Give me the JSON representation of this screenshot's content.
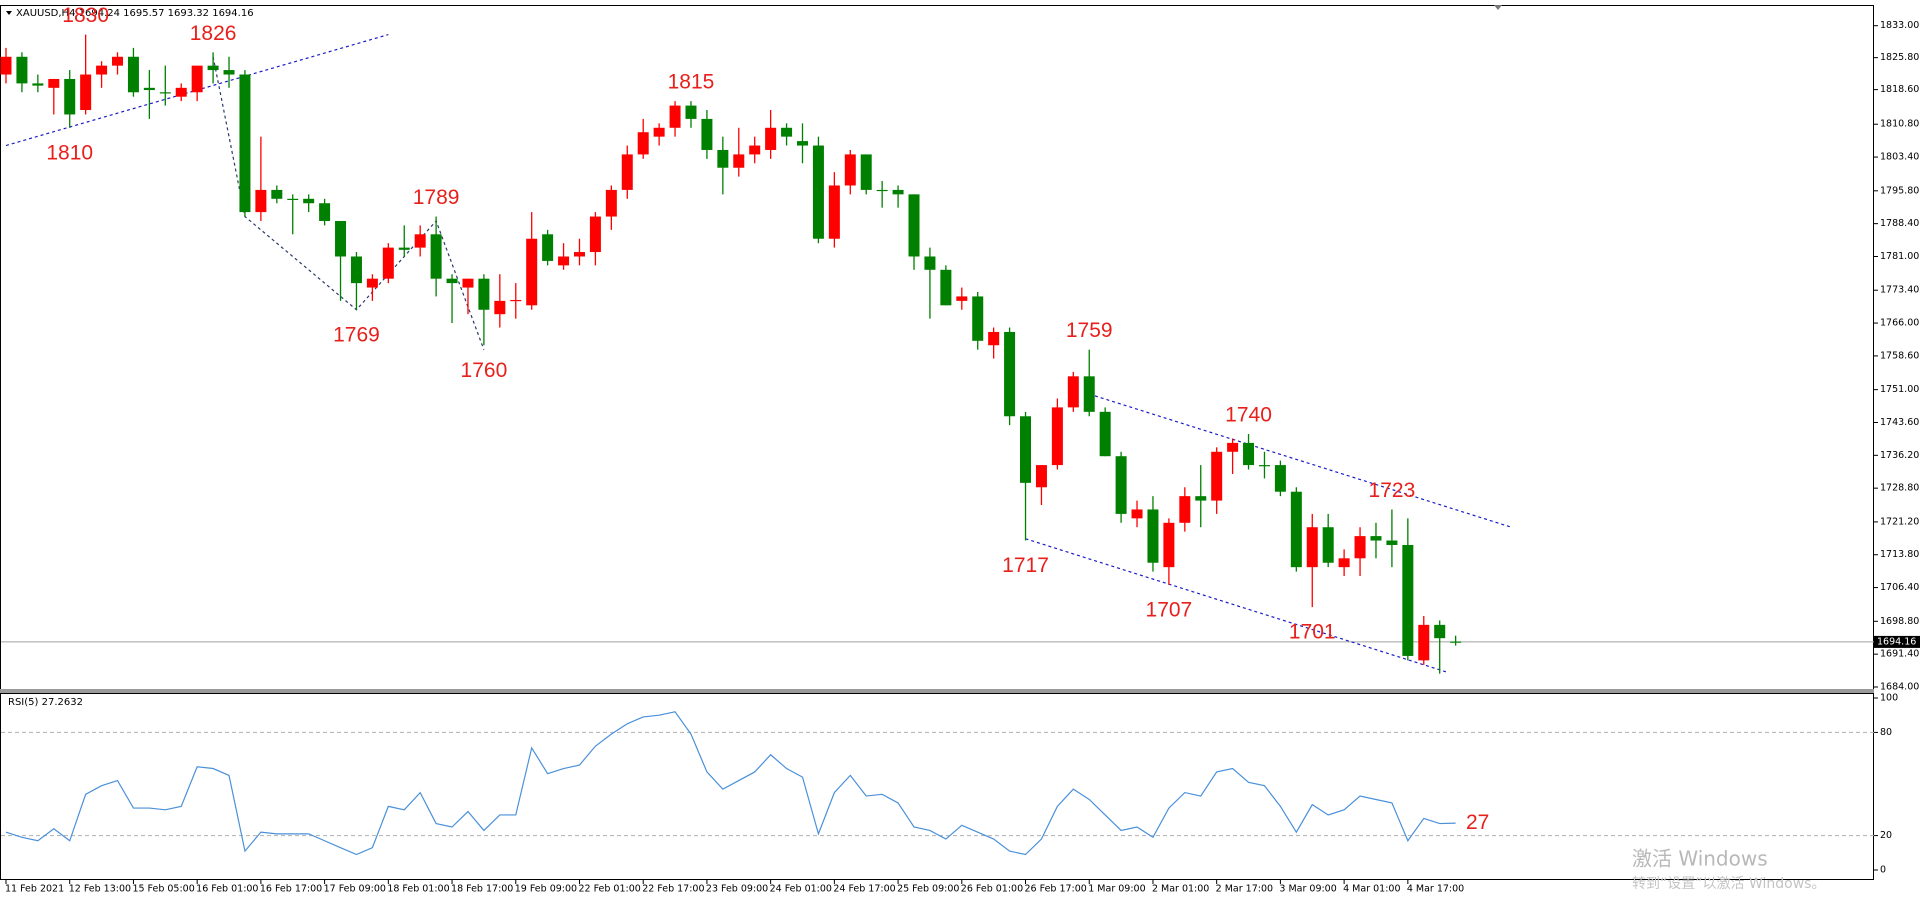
{
  "chart_data": [
    {
      "type": "candlestick",
      "title": "XAUUSD,H4 1694.24 1695.57 1693.32 1694.16",
      "categories": [
        "11 Feb 2021",
        null,
        null,
        null,
        "12 Feb 13:00",
        null,
        null,
        null,
        "15 Feb 05:00",
        null,
        null,
        null,
        "16 Feb 01:00",
        null,
        null,
        null,
        "16 Feb 17:00",
        null,
        null,
        null,
        "17 Feb 09:00",
        null,
        null,
        null,
        "18 Feb 01:00",
        null,
        null,
        null,
        "18 Feb 17:00",
        null,
        null,
        null,
        "19 Feb 09:00",
        null,
        null,
        null,
        "22 Feb 01:00",
        null,
        null,
        null,
        "22 Feb 17:00",
        null,
        null,
        null,
        "23 Feb 09:00",
        null,
        null,
        null,
        "24 Feb 01:00",
        null,
        null,
        null,
        "24 Feb 17:00",
        null,
        null,
        null,
        "25 Feb 09:00",
        null,
        null,
        null,
        "26 Feb 01:00",
        null,
        null,
        null,
        "26 Feb 17:00",
        null,
        null,
        null,
        "1 Mar 09:00",
        null,
        null,
        null,
        "2 Mar 01:00",
        null,
        null,
        null,
        "2 Mar 17:00",
        null,
        null,
        null,
        "3 Mar 09:00",
        null,
        null,
        null,
        "4 Mar 01:00",
        null,
        null,
        null,
        "4 Mar 17:00",
        null,
        null,
        null
      ],
      "open": [
        1822,
        1826,
        1820,
        1819,
        1821,
        1814,
        1822,
        1824,
        1826,
        1819,
        1818,
        1817,
        1818,
        1824,
        1823,
        1822,
        1791,
        1796,
        1794,
        1794,
        1793,
        1789,
        1781,
        1774,
        1776,
        1783,
        1783,
        1786,
        1776,
        1774,
        1776,
        1768,
        1771,
        1770,
        1786,
        1779,
        1781,
        1782,
        1790,
        1796,
        1804,
        1808,
        1810,
        1815,
        1812,
        1805,
        1801,
        1804,
        1805,
        1810,
        1807,
        1806,
        1785,
        1797,
        1804,
        1796,
        1796,
        1795,
        1781,
        1778,
        1771,
        1772,
        1761,
        1764,
        1745,
        1729,
        1734,
        1747,
        1754,
        1746,
        1736,
        1722,
        1724,
        1711,
        1721,
        1727,
        1726,
        1737,
        1739,
        1734,
        1734,
        1728,
        1711,
        1720,
        1711,
        1713,
        1718,
        1717,
        1716,
        1690,
        1698,
        1694.24
      ],
      "high": [
        1828,
        1827,
        1822,
        1821,
        1823,
        1831,
        1825,
        1827,
        1828,
        1823,
        1824,
        1820,
        1823,
        1827,
        1826,
        1823,
        1808,
        1797,
        1795,
        1795,
        1794,
        1789,
        1782,
        1777,
        1784,
        1788,
        1788,
        1790,
        1777,
        1776,
        1777,
        1777,
        1775,
        1791,
        1787,
        1784,
        1785,
        1791,
        1797,
        1806,
        1812,
        1811,
        1816,
        1816,
        1814,
        1808,
        1810,
        1808,
        1814,
        1811,
        1811,
        1808,
        1800,
        1805,
        1804,
        1798,
        1797,
        1795,
        1783,
        1779,
        1774,
        1773,
        1765,
        1765,
        1746,
        1734,
        1749,
        1755,
        1760,
        1747,
        1737,
        1726,
        1727,
        1722,
        1729,
        1734,
        1738,
        1740,
        1741,
        1737,
        1735,
        1729,
        1723,
        1723,
        1715,
        1720,
        1721,
        1724,
        1722,
        1700,
        1699,
        1695.57
      ],
      "low": [
        1820,
        1818,
        1818,
        1813,
        1810,
        1813,
        1819,
        1822,
        1817,
        1812,
        1815,
        1816,
        1816,
        1820,
        1819,
        1790,
        1789,
        1793,
        1786,
        1791,
        1788,
        1771,
        1769,
        1771,
        1775,
        1781,
        1781,
        1772,
        1766,
        1768,
        1761,
        1765,
        1767,
        1769,
        1779,
        1778,
        1779,
        1779,
        1787,
        1794,
        1803,
        1806,
        1808,
        1810,
        1803,
        1795,
        1799,
        1802,
        1803,
        1806,
        1802,
        1784,
        1783,
        1795,
        1795,
        1792,
        1792,
        1778,
        1767,
        1770,
        1769,
        1760,
        1758,
        1743,
        1717,
        1725,
        1733,
        1746,
        1745,
        1736,
        1721,
        1720,
        1710,
        1707,
        1719,
        1720,
        1723,
        1732,
        1733,
        1731,
        1727,
        1710,
        1702,
        1711,
        1709,
        1709,
        1713,
        1711,
        1690,
        1689,
        1687,
        1693.32
      ],
      "close": [
        1826,
        1820,
        1819.5,
        1821,
        1813,
        1822,
        1824,
        1826,
        1818,
        1818.5,
        1818,
        1819,
        1824,
        1823,
        1822,
        1791,
        1796,
        1794,
        1794,
        1793,
        1789,
        1781,
        1775,
        1776,
        1783,
        1782.5,
        1786,
        1776,
        1775,
        1776,
        1769,
        1771,
        1771.2,
        1785,
        1780,
        1781,
        1782,
        1790,
        1796,
        1804,
        1809,
        1810,
        1815,
        1812,
        1805,
        1801,
        1804,
        1806,
        1810,
        1808,
        1806,
        1785,
        1797,
        1804,
        1796,
        1796,
        1795,
        1781,
        1778,
        1770,
        1772,
        1762,
        1764,
        1745,
        1730,
        1734,
        1747,
        1754,
        1746,
        1736,
        1723,
        1724,
        1712,
        1721,
        1727,
        1726,
        1737,
        1739,
        1734,
        1734,
        1728,
        1711,
        1720,
        1712,
        1713,
        1718,
        1717,
        1716,
        1691,
        1698,
        1695,
        1694.16
      ],
      "up_color": "#ff0000",
      "down_color": "#008000",
      "ylim": [
        1684,
        1833
      ],
      "yticks": [
        {
          "value": 1833,
          "label": "1833.00"
        },
        {
          "value": 1825.8,
          "label": "1825.80"
        },
        {
          "value": 1818.6,
          "label": "1818.60"
        },
        {
          "value": 1810.8,
          "label": "1810.80"
        },
        {
          "value": 1803.4,
          "label": "1803.40"
        },
        {
          "value": 1795.8,
          "label": "1795.80"
        },
        {
          "value": 1788.4,
          "label": "1788.40"
        },
        {
          "value": 1781,
          "label": "1781.00"
        },
        {
          "value": 1773.4,
          "label": "1773.40"
        },
        {
          "value": 1766,
          "label": "1766.00"
        },
        {
          "value": 1758.6,
          "label": "1758.60"
        },
        {
          "value": 1751,
          "label": "1751.00"
        },
        {
          "value": 1743.6,
          "label": "1743.60"
        },
        {
          "value": 1736.2,
          "label": "1736.20"
        },
        {
          "value": 1728.8,
          "label": "1728.80"
        },
        {
          "value": 1721.2,
          "label": "1721.20"
        },
        {
          "value": 1713.8,
          "label": "1713.80"
        },
        {
          "value": 1706.4,
          "label": "1706.40"
        },
        {
          "value": 1698.8,
          "label": "1698.80"
        },
        {
          "value": 1691.4,
          "label": "1691.40"
        },
        {
          "value": 1684,
          "label": "1684.00"
        }
      ],
      "last_price": 1694.16,
      "annotation_color": "#e8201c",
      "annotations": [
        {
          "index": 5,
          "value": 1830
        },
        {
          "index": 4,
          "value": 1810
        },
        {
          "index": 13,
          "value": 1826
        },
        {
          "index": 22,
          "value": 1769
        },
        {
          "index": 27,
          "value": 1789
        },
        {
          "index": 30,
          "value": 1760
        },
        {
          "index": 43,
          "value": 1815
        },
        {
          "index": 64,
          "value": 1717
        },
        {
          "index": 68,
          "value": 1759
        },
        {
          "index": 73,
          "value": 1707
        },
        {
          "index": 78,
          "value": 1740
        },
        {
          "index": 82,
          "value": 1701
        },
        {
          "index": 87,
          "value": 1723
        }
      ],
      "lines": [
        {
          "color": "#1c1cc8",
          "points": [
            [
              0,
              1806
            ],
            [
              24,
              1831
            ]
          ]
        },
        {
          "color": "#2a3a6a",
          "points": [
            [
              13,
              1826
            ],
            [
              15,
              1790
            ],
            [
              22,
              1769
            ],
            [
              27,
              1789
            ],
            [
              30,
              1760
            ]
          ]
        },
        {
          "color": "#1c1cc8",
          "points": [
            [
              68,
              1750
            ],
            [
              94.5,
              1720
            ]
          ]
        },
        {
          "color": "#1c1cc8",
          "points": [
            [
              64,
              1717.4
            ],
            [
              90.5,
              1687.3
            ]
          ]
        }
      ]
    },
    {
      "type": "line",
      "title": "RSI(5) 27.2632",
      "values": [
        22,
        19,
        17,
        24,
        17,
        44,
        49,
        52,
        36,
        36,
        35,
        37,
        60,
        59,
        55,
        11,
        22,
        21,
        21,
        21,
        17,
        13,
        9,
        13,
        37,
        35,
        45,
        27,
        25,
        34,
        23,
        32,
        32,
        71,
        56,
        59,
        61,
        72,
        79,
        85,
        89,
        90,
        92,
        79,
        57,
        47,
        52,
        57,
        67,
        59,
        54,
        21,
        45,
        55,
        43,
        44,
        39,
        25,
        23,
        18,
        26,
        22,
        18,
        11,
        9,
        18,
        37,
        47,
        41,
        32,
        23,
        25,
        19,
        36,
        45,
        43,
        57,
        59,
        51,
        49,
        37,
        22,
        38,
        32,
        35,
        43,
        41,
        39,
        17,
        30,
        27,
        27.2632
      ],
      "color": "#4a90d9",
      "ylim": [
        0,
        100
      ],
      "yticks": [
        100,
        80,
        20,
        0
      ],
      "levels": [
        80,
        20
      ],
      "annotation": 27
    }
  ],
  "watermark": [
    "激活 Windows",
    "转到“设置”以激活 Windows。"
  ]
}
